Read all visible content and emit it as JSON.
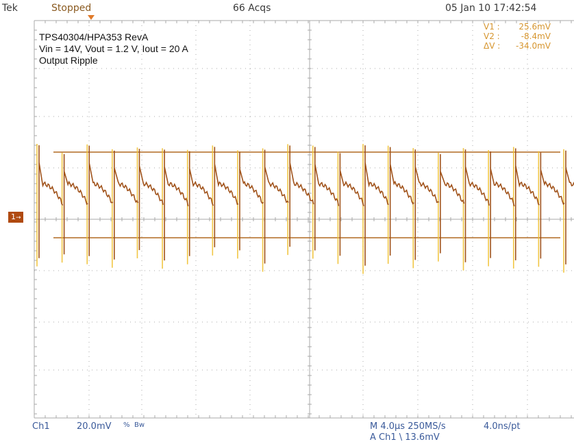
{
  "header": {
    "brand": "Tek",
    "status": "Stopped",
    "acquisitions": "66 Acqs",
    "datetime": "05 Jan 10 17:42:54"
  },
  "annotation": {
    "line1": "TPS40304/HPA353 RevA",
    "line2": "Vin = 14V, Vout = 1.2 V, Iout = 20 A",
    "line3": "Output Ripple"
  },
  "cursor_readout": {
    "v1_label": "V1 :",
    "v1_value": "25.6mV",
    "v2_label": "V2 :",
    "v2_value": "-8.4mV",
    "dv_label": "ΔV :",
    "dv_value": "-34.0mV"
  },
  "channel_marker": "1",
  "footer": {
    "channel": "Ch1",
    "scale": "20.0mV",
    "coupling": "%",
    "bandwidth": "Bw",
    "timebase": "M 4.0µs 250MS/s",
    "resolution": "4.0ns/pt",
    "trigger": "A  Ch1  \\  13.6mV"
  },
  "colors": {
    "grid": "#a8a8a8",
    "trace_main": "#a0521a",
    "trace_peak": "#f0c030",
    "cursor": "#b06820",
    "text_blue": "#3a5a9a"
  },
  "chart_data": {
    "type": "line",
    "series": [
      {
        "name": "Ch1",
        "pulses": 22,
        "period_us": 1.6
      }
    ],
    "x_divisions": 10,
    "y_divisions": 8,
    "grid": true
  }
}
